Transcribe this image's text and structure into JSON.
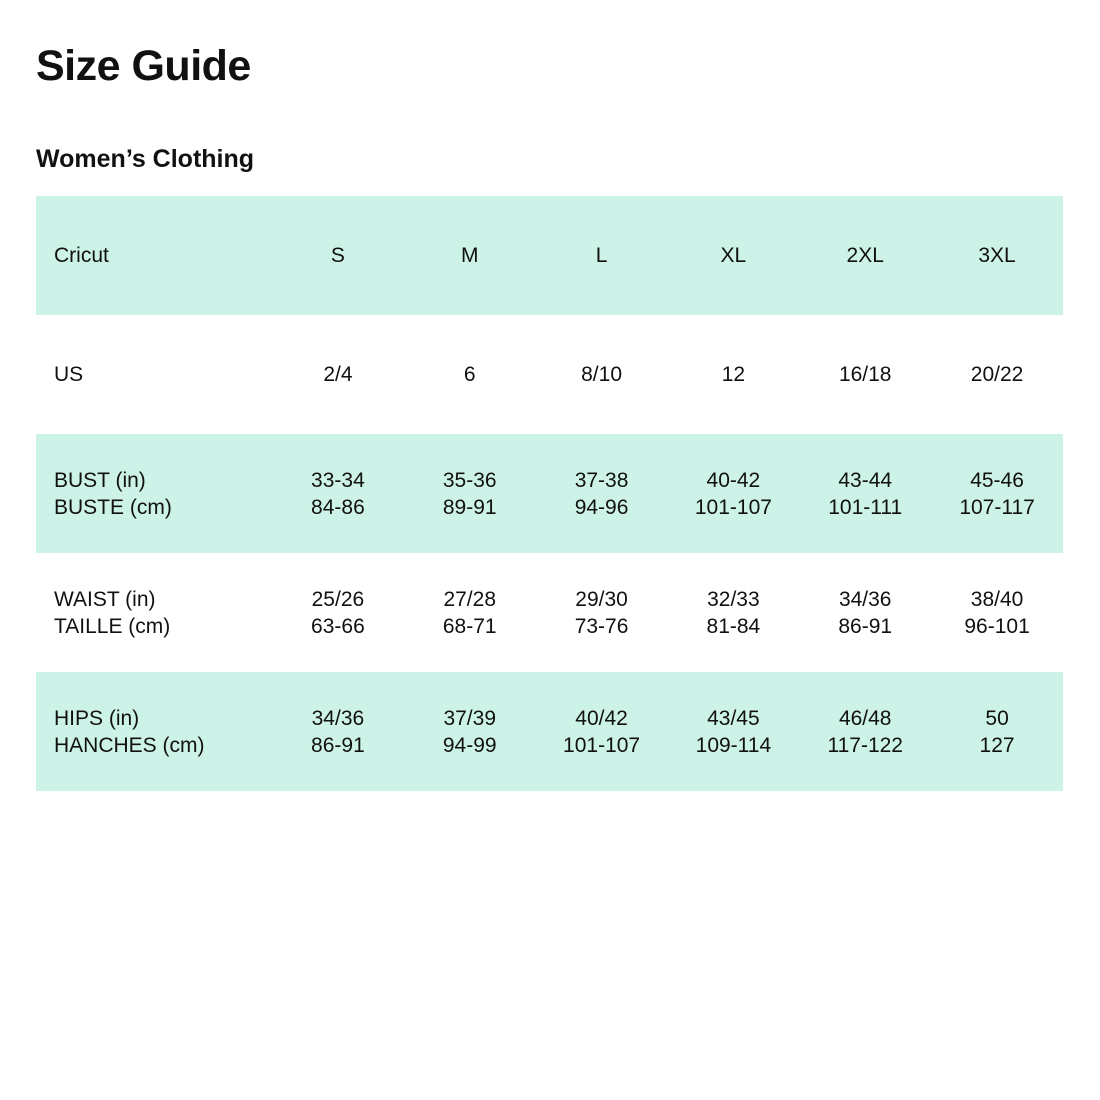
{
  "title": "Size Guide",
  "subtitle": "Women’s Clothing",
  "colors": {
    "row_shade": "#cdf2e7",
    "text": "#111111"
  },
  "table": {
    "header": {
      "label": "Cricut",
      "sizes": [
        "S",
        "M",
        "L",
        "XL",
        "2XL",
        "3XL"
      ]
    },
    "rows": [
      {
        "labels": [
          "US"
        ],
        "values": [
          [
            "2/4"
          ],
          [
            "6"
          ],
          [
            "8/10"
          ],
          [
            "12"
          ],
          [
            "16/18"
          ],
          [
            "20/22"
          ]
        ]
      },
      {
        "labels": [
          "BUST (in)",
          "BUSTE (cm)"
        ],
        "values": [
          [
            "33-34",
            "84-86"
          ],
          [
            "35-36",
            "89-91"
          ],
          [
            "37-38",
            "94-96"
          ],
          [
            "40-42",
            "101-107"
          ],
          [
            "43-44",
            "101-111"
          ],
          [
            "45-46",
            "107-117"
          ]
        ]
      },
      {
        "labels": [
          "WAIST (in)",
          "TAILLE (cm)"
        ],
        "values": [
          [
            "25/26",
            "63-66"
          ],
          [
            "27/28",
            "68-71"
          ],
          [
            "29/30",
            "73-76"
          ],
          [
            "32/33",
            "81-84"
          ],
          [
            "34/36",
            "86-91"
          ],
          [
            "38/40",
            "96-101"
          ]
        ]
      },
      {
        "labels": [
          "HIPS (in)",
          "HANCHES (cm)"
        ],
        "values": [
          [
            "34/36",
            "86-91"
          ],
          [
            "37/39",
            "94-99"
          ],
          [
            "40/42",
            "101-107"
          ],
          [
            "43/45",
            "109-114"
          ],
          [
            "46/48",
            "117-122"
          ],
          [
            "50",
            "127"
          ]
        ]
      }
    ]
  }
}
